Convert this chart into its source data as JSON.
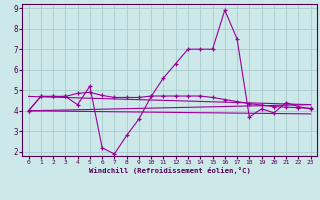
{
  "xlabel": "Windchill (Refroidissement éolien,°C)",
  "bg_color": "#cce8e8",
  "grid_color": "#aacccc",
  "line_color": "#990099",
  "xlim": [
    -0.5,
    23.5
  ],
  "ylim": [
    1.8,
    9.2
  ],
  "yticks": [
    2,
    3,
    4,
    5,
    6,
    7,
    8,
    9
  ],
  "xticks": [
    0,
    1,
    2,
    3,
    4,
    5,
    6,
    7,
    8,
    9,
    10,
    11,
    12,
    13,
    14,
    15,
    16,
    17,
    18,
    19,
    20,
    21,
    22,
    23
  ],
  "series1_x": [
    0,
    1,
    2,
    3,
    4,
    5,
    6,
    7,
    8,
    9,
    10,
    11,
    12,
    13,
    14,
    15,
    16,
    17,
    18,
    19,
    20,
    21,
    22,
    23
  ],
  "series1_y": [
    4.0,
    4.7,
    4.7,
    4.7,
    4.3,
    5.2,
    2.2,
    1.9,
    2.8,
    3.6,
    4.7,
    5.6,
    6.3,
    7.0,
    7.0,
    7.0,
    8.9,
    7.5,
    3.7,
    4.1,
    3.9,
    4.4,
    4.2,
    4.1
  ],
  "series2_x": [
    0,
    1,
    2,
    3,
    4,
    5,
    6,
    7,
    8,
    9,
    10,
    11,
    12,
    13,
    14,
    15,
    16,
    17,
    18,
    19,
    20,
    21,
    22,
    23
  ],
  "series2_y": [
    4.0,
    4.7,
    4.7,
    4.7,
    4.85,
    4.9,
    4.75,
    4.65,
    4.65,
    4.65,
    4.72,
    4.72,
    4.72,
    4.72,
    4.72,
    4.65,
    4.55,
    4.45,
    4.35,
    4.28,
    4.2,
    4.18,
    4.15,
    4.12
  ],
  "series3_x": [
    0,
    23
  ],
  "series3_y": [
    4.7,
    4.3
  ],
  "series4_x": [
    0,
    23
  ],
  "series4_y": [
    4.0,
    4.3
  ],
  "series5_x": [
    0,
    23
  ],
  "series5_y": [
    4.0,
    3.85
  ]
}
